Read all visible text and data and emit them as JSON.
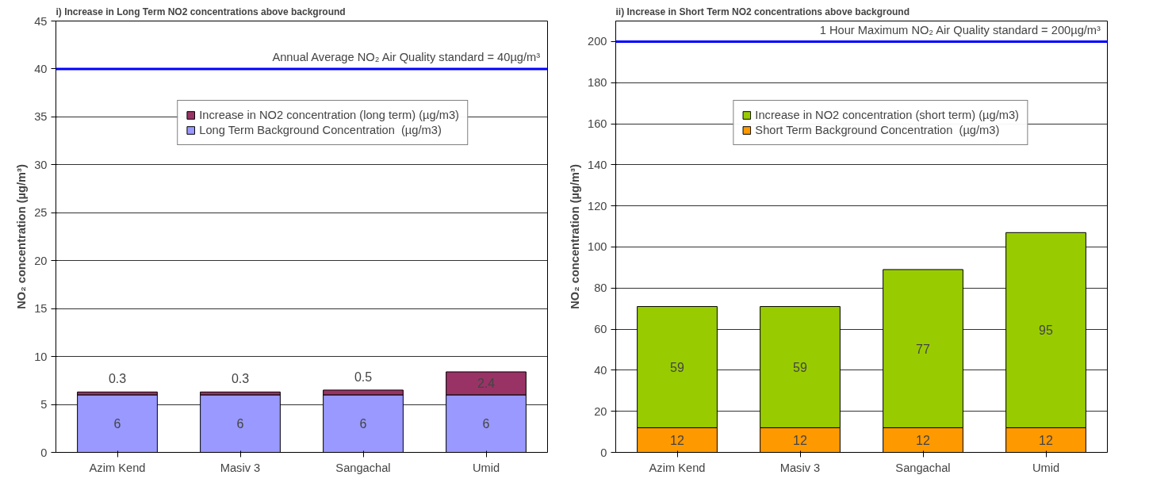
{
  "chart_data": [
    {
      "type": "bar",
      "stacked": true,
      "title": "i) Increase in Long Term NO2 concentrations above background",
      "ylabel": "NO₂ concentration (µg/m³)",
      "categories": [
        "Azim Kend",
        "Masiv 3",
        "Sangachal",
        "Umid"
      ],
      "series": [
        {
          "name": "Long Term Background Concentration  (µg/m3)",
          "color": "#9999ff",
          "values": [
            6,
            6,
            6,
            6
          ]
        },
        {
          "name": "Increase in NO2 concentration (long term) (µg/m3)",
          "color": "#993366",
          "values": [
            0.3,
            0.3,
            0.5,
            2.4
          ]
        }
      ],
      "ylim": [
        0,
        45
      ],
      "yticks": [
        0,
        5,
        10,
        15,
        20,
        25,
        30,
        35,
        40,
        45
      ],
      "grid": "y",
      "legend": "right",
      "data_labels": true,
      "ref_lines": [
        {
          "axis": "y",
          "value": 40,
          "label": "Annual Average NO₂ Air Quality standard = 40µg/m³",
          "color": "#0000ff"
        }
      ]
    },
    {
      "type": "bar",
      "stacked": true,
      "title": "ii) Increase in Short Term NO2 concentrations above background",
      "ylabel": "NO₂ concentration (µg/m³)",
      "categories": [
        "Azim Kend",
        "Masiv 3",
        "Sangachal",
        "Umid"
      ],
      "series": [
        {
          "name": "Short Term Background Concentration  (µg/m3)",
          "color": "#ff9900",
          "values": [
            12,
            12,
            12,
            12
          ]
        },
        {
          "name": "Increase in NO2 concentration (short term) (µg/m3)",
          "color": "#99cc00",
          "values": [
            59,
            59,
            77,
            95
          ]
        }
      ],
      "ylim": [
        0,
        210
      ],
      "yticks": [
        0,
        20,
        40,
        60,
        80,
        100,
        120,
        140,
        160,
        180,
        200
      ],
      "grid": "y",
      "legend": "right",
      "data_labels": true,
      "ref_lines": [
        {
          "axis": "y",
          "value": 200,
          "label": "1 Hour Maximum NO₂ Air Quality standard = 200µg/m³",
          "color": "#0000ff"
        }
      ]
    }
  ]
}
